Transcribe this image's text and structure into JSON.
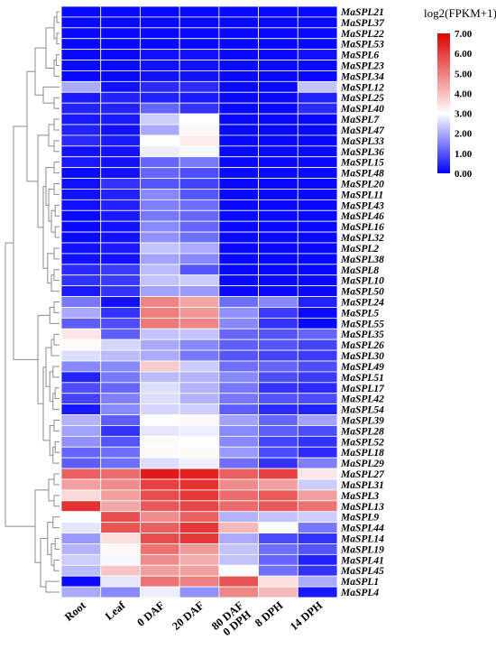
{
  "chart_data": {
    "type": "heatmap",
    "columns": [
      "Root",
      "Leaf",
      "0 DAF",
      "20 DAF",
      "80 DAF\n0 DPH",
      "8 DPH",
      "14 DPH"
    ],
    "rows": [
      "MaSPL21",
      "MaSPL37",
      "MaSPL22",
      "MaSPL53",
      "MaSPL6",
      "MaSPL23",
      "MaSPL34",
      "MaSPL12",
      "MaSPL25",
      "MaSPL40",
      "MaSPL7",
      "MaSPL47",
      "MaSPL33",
      "MaSPL36",
      "MaSPL15",
      "MaSPL48",
      "MaSPL20",
      "MaSPL11",
      "MaSPL43",
      "MaSPL46",
      "MaSPL16",
      "MaSPL32",
      "MaSPL2",
      "MaSPL38",
      "MaSPL8",
      "MaSPL10",
      "MaSPL50",
      "MaSPL24",
      "MaSPL5",
      "MaSPL55",
      "MaSPL35",
      "MaSPL26",
      "MaSPL30",
      "MaSPL49",
      "MaSPL51",
      "MaSPL17",
      "MaSPL42",
      "MaSPL54",
      "MaSPL39",
      "MaSPL28",
      "MaSPL52",
      "MaSPL18",
      "MaSPL29",
      "MaSPL27",
      "MaSPL31",
      "MaSPL3",
      "MaSPL13",
      "MaSPL9",
      "MaSPL44",
      "MaSPL14",
      "MaSPL19",
      "MaSPL41",
      "MaSPL45",
      "MaSPL1",
      "MaSPL4"
    ],
    "values": [
      [
        0.1,
        0.1,
        0.1,
        0.1,
        0.1,
        0.1,
        0.1
      ],
      [
        0.1,
        0.1,
        0.1,
        0.1,
        0.1,
        0.1,
        0.1
      ],
      [
        0.1,
        0.1,
        0.1,
        0.1,
        0.1,
        0.1,
        0.1
      ],
      [
        0.1,
        0.1,
        0.1,
        0.1,
        0.1,
        0.1,
        0.1
      ],
      [
        0.1,
        0.1,
        0.2,
        0.2,
        0.1,
        0.1,
        0.2
      ],
      [
        0.1,
        0.1,
        0.2,
        0.2,
        0.1,
        0.1,
        0.1
      ],
      [
        0.1,
        0.1,
        0.2,
        0.2,
        0.1,
        0.1,
        0.1
      ],
      [
        2.0,
        0.2,
        0.5,
        0.5,
        0.1,
        0.1,
        2.3
      ],
      [
        0.3,
        0.4,
        0.4,
        0.3,
        0.1,
        0.1,
        0.4
      ],
      [
        0.4,
        0.4,
        1.2,
        0.6,
        0.1,
        0.1,
        0.5
      ],
      [
        0.3,
        0.3,
        2.4,
        3.0,
        0.1,
        0.1,
        0.1
      ],
      [
        0.4,
        0.2,
        2.0,
        3.1,
        0.1,
        0.1,
        0.1
      ],
      [
        0.5,
        0.3,
        3.0,
        3.3,
        0.1,
        0.1,
        0.1
      ],
      [
        0.2,
        0.2,
        2.8,
        2.9,
        0.1,
        0.1,
        0.1
      ],
      [
        0.3,
        0.2,
        1.2,
        1.4,
        0.1,
        0.1,
        0.1
      ],
      [
        0.1,
        0.2,
        1.2,
        0.9,
        0.1,
        0.1,
        0.1
      ],
      [
        0.2,
        0.6,
        1.0,
        0.8,
        0.1,
        0.1,
        0.1
      ],
      [
        0.2,
        0.4,
        1.6,
        1.0,
        0.1,
        0.1,
        0.1
      ],
      [
        0.2,
        0.4,
        1.5,
        1.3,
        0.1,
        0.1,
        0.1
      ],
      [
        0.1,
        0.3,
        1.4,
        1.2,
        0.1,
        0.1,
        0.1
      ],
      [
        0.1,
        0.2,
        1.6,
        1.2,
        0.1,
        0.1,
        0.1
      ],
      [
        0.1,
        0.2,
        1.7,
        1.3,
        0.1,
        0.1,
        0.1
      ],
      [
        0.2,
        0.3,
        2.3,
        2.0,
        0.1,
        0.1,
        0.1
      ],
      [
        0.2,
        0.2,
        1.9,
        1.6,
        0.1,
        0.1,
        0.1
      ],
      [
        0.5,
        0.7,
        2.2,
        1.0,
        0.1,
        0.1,
        0.1
      ],
      [
        0.6,
        0.7,
        2.3,
        2.4,
        0.1,
        0.1,
        0.1
      ],
      [
        0.3,
        0.6,
        1.9,
        1.8,
        0.1,
        0.1,
        0.1
      ],
      [
        1.4,
        0.2,
        4.9,
        4.4,
        1.3,
        1.6,
        0.4
      ],
      [
        2.0,
        0.6,
        5.0,
        4.6,
        1.7,
        0.7,
        0.1
      ],
      [
        1.1,
        0.9,
        5.1,
        4.9,
        1.6,
        0.6,
        0.1
      ],
      [
        3.4,
        1.1,
        2.3,
        2.3,
        1.2,
        1.0,
        1.2
      ],
      [
        3.1,
        2.5,
        2.0,
        1.6,
        1.1,
        1.0,
        0.8
      ],
      [
        2.6,
        2.2,
        2.0,
        1.4,
        1.0,
        0.8,
        0.7
      ],
      [
        1.6,
        1.6,
        3.8,
        2.4,
        1.3,
        1.2,
        0.9
      ],
      [
        0.4,
        1.4,
        2.2,
        2.1,
        1.6,
        0.9,
        0.7
      ],
      [
        0.9,
        1.2,
        2.6,
        2.1,
        1.4,
        0.6,
        0.5
      ],
      [
        0.8,
        1.5,
        2.6,
        2.1,
        1.4,
        1.0,
        0.9
      ],
      [
        0.3,
        1.6,
        2.5,
        2.4,
        1.1,
        0.5,
        0.4
      ],
      [
        2.1,
        1.1,
        3.0,
        3.1,
        1.9,
        1.2,
        1.9
      ],
      [
        1.9,
        0.6,
        2.7,
        2.8,
        1.6,
        1.1,
        0.9
      ],
      [
        1.7,
        1.0,
        3.1,
        3.0,
        1.6,
        0.8,
        0.6
      ],
      [
        1.2,
        1.3,
        3.1,
        3.1,
        1.8,
        0.9,
        0.5
      ],
      [
        1.1,
        1.3,
        2.6,
        2.8,
        1.3,
        0.6,
        1.5
      ],
      [
        5.5,
        5.3,
        6.6,
        6.5,
        5.5,
        6.0,
        3.4
      ],
      [
        4.5,
        4.8,
        6.0,
        6.2,
        4.8,
        4.5,
        2.4
      ],
      [
        3.6,
        4.5,
        5.8,
        6.1,
        5.3,
        5.6,
        4.5
      ],
      [
        6.2,
        4.4,
        5.6,
        5.9,
        5.3,
        5.6,
        5.2
      ],
      [
        3.0,
        5.8,
        4.8,
        5.5,
        2.1,
        2.3,
        2.4
      ],
      [
        2.7,
        5.7,
        5.5,
        6.1,
        4.1,
        3.0,
        1.4
      ],
      [
        1.8,
        3.5,
        5.8,
        6.1,
        2.0,
        0.9,
        0.6
      ],
      [
        2.1,
        3.1,
        5.2,
        4.6,
        2.3,
        1.3,
        1.0
      ],
      [
        2.4,
        2.9,
        4.8,
        4.3,
        2.3,
        1.2,
        0.4
      ],
      [
        2.2,
        3.9,
        4.5,
        4.5,
        3.0,
        1.3,
        0.6
      ],
      [
        0.1,
        2.7,
        5.2,
        5.0,
        5.7,
        3.5,
        2.0
      ],
      [
        2.0,
        1.6,
        2.8,
        1.7,
        4.9,
        4.1,
        0.3
      ]
    ],
    "colorbar": {
      "title": "log2(FPKM+1)",
      "min": 0,
      "max": 7,
      "ticks": [
        "0.00",
        "1.00",
        "2.00",
        "3.00",
        "4.00",
        "5.00",
        "6.00",
        "7.00"
      ],
      "colors": {
        "low": "#0000ff",
        "mid": "#ffffff",
        "high": "#dd0000",
        "mid_value": 3
      }
    },
    "dendrogram": "row clustering tree on left side"
  }
}
